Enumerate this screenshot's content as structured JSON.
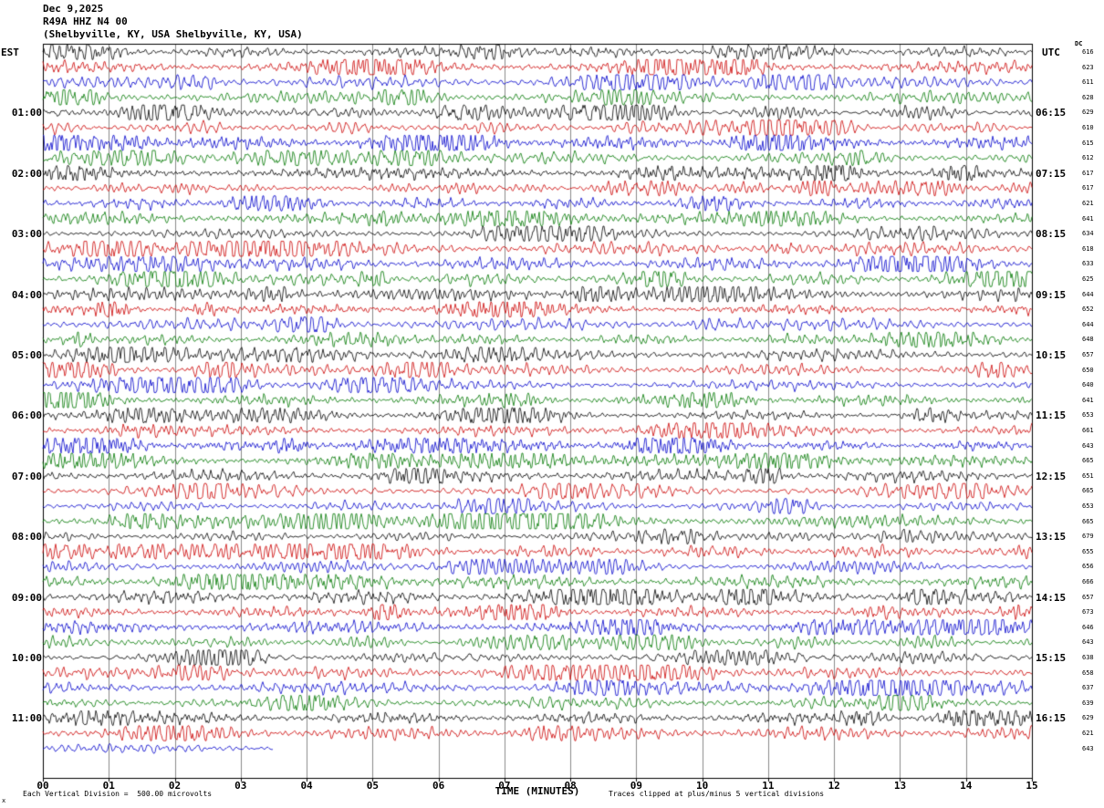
{
  "header": {
    "date": "Dec 9,2025",
    "station": "R49A HHZ N4 00",
    "location": "(Shelbyville, KY, USA Shelbyville, KY, USA)"
  },
  "axes": {
    "left_label": "EST",
    "right_label": "UTC",
    "dc_label": "DC"
  },
  "footer": {
    "left_note": "Each Vertical Division =  500.00 microvolts",
    "right_note": "Traces clipped at plus/minus 5 vertical divisions",
    "corner_mark": "x"
  },
  "chart_data": {
    "type": "line",
    "subtype": "helicorder-seismogram",
    "title": "R49A HHZ N4 00 (Shelbyville, KY, USA)",
    "xlabel": "TIME (MINUTES)",
    "x_ticks": [
      "00",
      "01",
      "02",
      "03",
      "04",
      "05",
      "06",
      "07",
      "08",
      "09",
      "10",
      "11",
      "12",
      "13",
      "14",
      "15"
    ],
    "x_range_minutes": [
      0,
      15
    ],
    "minutes_per_row": 15,
    "trace_colors": [
      "#000000",
      "#cc0000",
      "#0000cc",
      "#007700"
    ],
    "clip_divisions": 5,
    "microvolts_per_division": 500.0,
    "rows": [
      {
        "est": "",
        "utc": "",
        "dc": "616",
        "color_index": 0
      },
      {
        "est": "",
        "utc": "",
        "dc": "623",
        "color_index": 1
      },
      {
        "est": "",
        "utc": "",
        "dc": "611",
        "color_index": 2
      },
      {
        "est": "",
        "utc": "",
        "dc": "628",
        "color_index": 3
      },
      {
        "est": "01:00",
        "utc": "06:15",
        "dc": "629",
        "color_index": 0
      },
      {
        "est": "",
        "utc": "",
        "dc": "610",
        "color_index": 1
      },
      {
        "est": "",
        "utc": "",
        "dc": "615",
        "color_index": 2
      },
      {
        "est": "",
        "utc": "",
        "dc": "612",
        "color_index": 3
      },
      {
        "est": "02:00",
        "utc": "07:15",
        "dc": "617",
        "color_index": 0
      },
      {
        "est": "",
        "utc": "",
        "dc": "617",
        "color_index": 1
      },
      {
        "est": "",
        "utc": "",
        "dc": "621",
        "color_index": 2
      },
      {
        "est": "",
        "utc": "",
        "dc": "641",
        "color_index": 3
      },
      {
        "est": "03:00",
        "utc": "08:15",
        "dc": "634",
        "color_index": 0
      },
      {
        "est": "",
        "utc": "",
        "dc": "618",
        "color_index": 1
      },
      {
        "est": "",
        "utc": "",
        "dc": "633",
        "color_index": 2
      },
      {
        "est": "",
        "utc": "",
        "dc": "625",
        "color_index": 3
      },
      {
        "est": "04:00",
        "utc": "09:15",
        "dc": "644",
        "color_index": 0
      },
      {
        "est": "",
        "utc": "",
        "dc": "652",
        "color_index": 1
      },
      {
        "est": "",
        "utc": "",
        "dc": "644",
        "color_index": 2
      },
      {
        "est": "",
        "utc": "",
        "dc": "648",
        "color_index": 3
      },
      {
        "est": "05:00",
        "utc": "10:15",
        "dc": "657",
        "color_index": 0
      },
      {
        "est": "",
        "utc": "",
        "dc": "650",
        "color_index": 1
      },
      {
        "est": "",
        "utc": "",
        "dc": "640",
        "color_index": 2
      },
      {
        "est": "",
        "utc": "",
        "dc": "641",
        "color_index": 3
      },
      {
        "est": "06:00",
        "utc": "11:15",
        "dc": "653",
        "color_index": 0
      },
      {
        "est": "",
        "utc": "",
        "dc": "661",
        "color_index": 1
      },
      {
        "est": "",
        "utc": "",
        "dc": "643",
        "color_index": 2
      },
      {
        "est": "",
        "utc": "",
        "dc": "665",
        "color_index": 3
      },
      {
        "est": "07:00",
        "utc": "12:15",
        "dc": "651",
        "color_index": 0
      },
      {
        "est": "",
        "utc": "",
        "dc": "665",
        "color_index": 1
      },
      {
        "est": "",
        "utc": "",
        "dc": "653",
        "color_index": 2
      },
      {
        "est": "",
        "utc": "",
        "dc": "665",
        "color_index": 3
      },
      {
        "est": "08:00",
        "utc": "13:15",
        "dc": "679",
        "color_index": 0
      },
      {
        "est": "",
        "utc": "",
        "dc": "655",
        "color_index": 1
      },
      {
        "est": "",
        "utc": "",
        "dc": "656",
        "color_index": 2
      },
      {
        "est": "",
        "utc": "",
        "dc": "666",
        "color_index": 3
      },
      {
        "est": "09:00",
        "utc": "14:15",
        "dc": "657",
        "color_index": 0
      },
      {
        "est": "",
        "utc": "",
        "dc": "673",
        "color_index": 1
      },
      {
        "est": "",
        "utc": "",
        "dc": "646",
        "color_index": 2
      },
      {
        "est": "",
        "utc": "",
        "dc": "643",
        "color_index": 3
      },
      {
        "est": "10:00",
        "utc": "15:15",
        "dc": "638",
        "color_index": 0
      },
      {
        "est": "",
        "utc": "",
        "dc": "658",
        "color_index": 1
      },
      {
        "est": "",
        "utc": "",
        "dc": "637",
        "color_index": 2
      },
      {
        "est": "",
        "utc": "",
        "dc": "639",
        "color_index": 3
      },
      {
        "est": "11:00",
        "utc": "16:15",
        "dc": "629",
        "color_index": 0
      },
      {
        "est": "",
        "utc": "",
        "dc": "621",
        "color_index": 1
      },
      {
        "est": "",
        "utc": "",
        "dc": "643",
        "color_index": 2,
        "end_minute": 3.5
      }
    ]
  }
}
